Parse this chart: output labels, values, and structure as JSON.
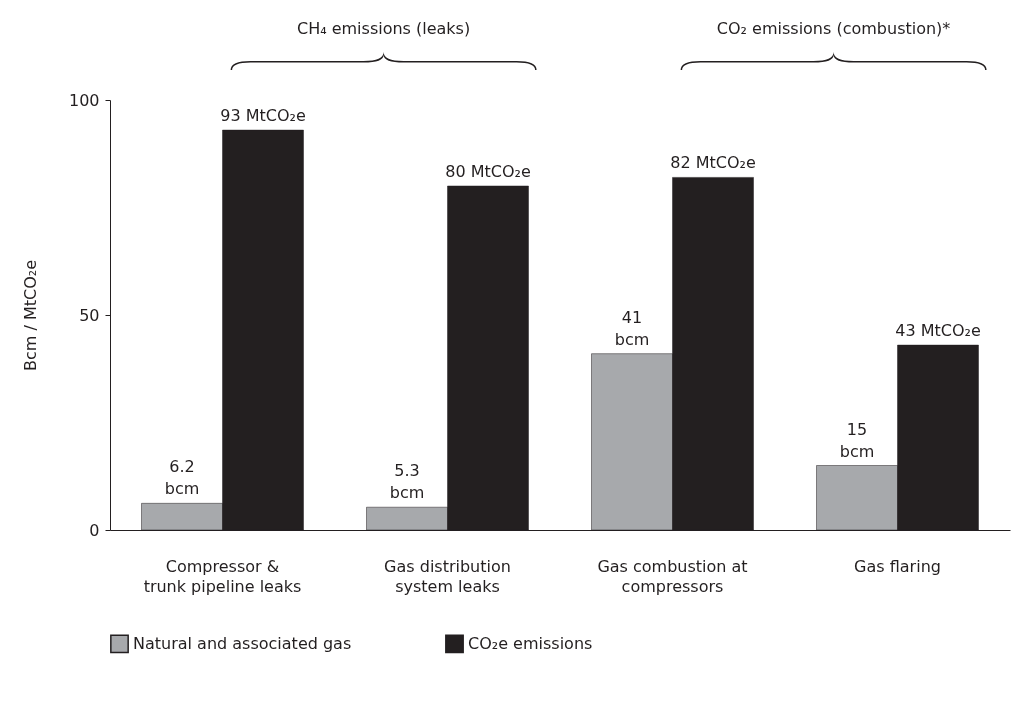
{
  "chart_data": {
    "type": "bar",
    "ylabel": "Bcm / MtCO₂e",
    "categories": [
      "Compressor &\ntrunk pipeline leaks",
      "Gas distribution\nsystem leaks",
      "Gas combustion at\ncompressors",
      "Gas flaring"
    ],
    "series": [
      {
        "name": "Natural and associated gas",
        "color": "#a7a9ac",
        "values": [
          6.2,
          5.3,
          41,
          15
        ],
        "value_labels": [
          "6.2\nbcm",
          "5.3\nbcm",
          "41\nbcm",
          "15\nbcm"
        ]
      },
      {
        "name": "CO₂e emissions",
        "color": "#231f20",
        "values": [
          93,
          80,
          82,
          43
        ],
        "value_labels": [
          "93 MtCO₂e",
          "80 MtCO₂e",
          "82 MtCO₂e",
          "43 MtCO₂e"
        ]
      }
    ],
    "ylim": [
      0,
      100
    ],
    "yticks": [
      0,
      50,
      100
    ],
    "legend": "bottom",
    "annotations": [
      "CH₄ emissions (leaks)",
      "CO₂ emissions (combustion)*"
    ]
  }
}
